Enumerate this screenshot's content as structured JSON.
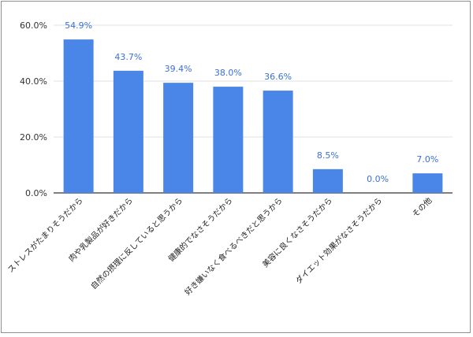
{
  "chart_data": {
    "type": "bar",
    "categories": [
      "ストレスがたまりそうだから",
      "肉や乳製品が好きだから",
      "自然の摂理に反していると思うから",
      "健康的でなさそうだから",
      "好き嫌いなく食べるべきだと思うから",
      "美容に良くなさそうだから",
      "ダイエット効果がなさそうだから",
      "その他"
    ],
    "values": [
      54.9,
      43.7,
      39.4,
      38.0,
      36.6,
      8.5,
      0.0,
      7.0
    ],
    "data_labels": [
      "54.9%",
      "43.7%",
      "39.4%",
      "38.0%",
      "36.6%",
      "8.5%",
      "0.0%",
      "7.0%"
    ],
    "y_ticks": [
      0,
      20,
      40,
      60
    ],
    "y_tick_labels": [
      "0.0%",
      "20.0%",
      "40.0%",
      "60.0%"
    ],
    "ylim": [
      0,
      60
    ],
    "grid": true,
    "legend": "none",
    "colors": {
      "bar": "#4a86e8",
      "data_label": "#3a6fd8",
      "grid": "#e0e0e0",
      "axis": "#333333"
    }
  }
}
